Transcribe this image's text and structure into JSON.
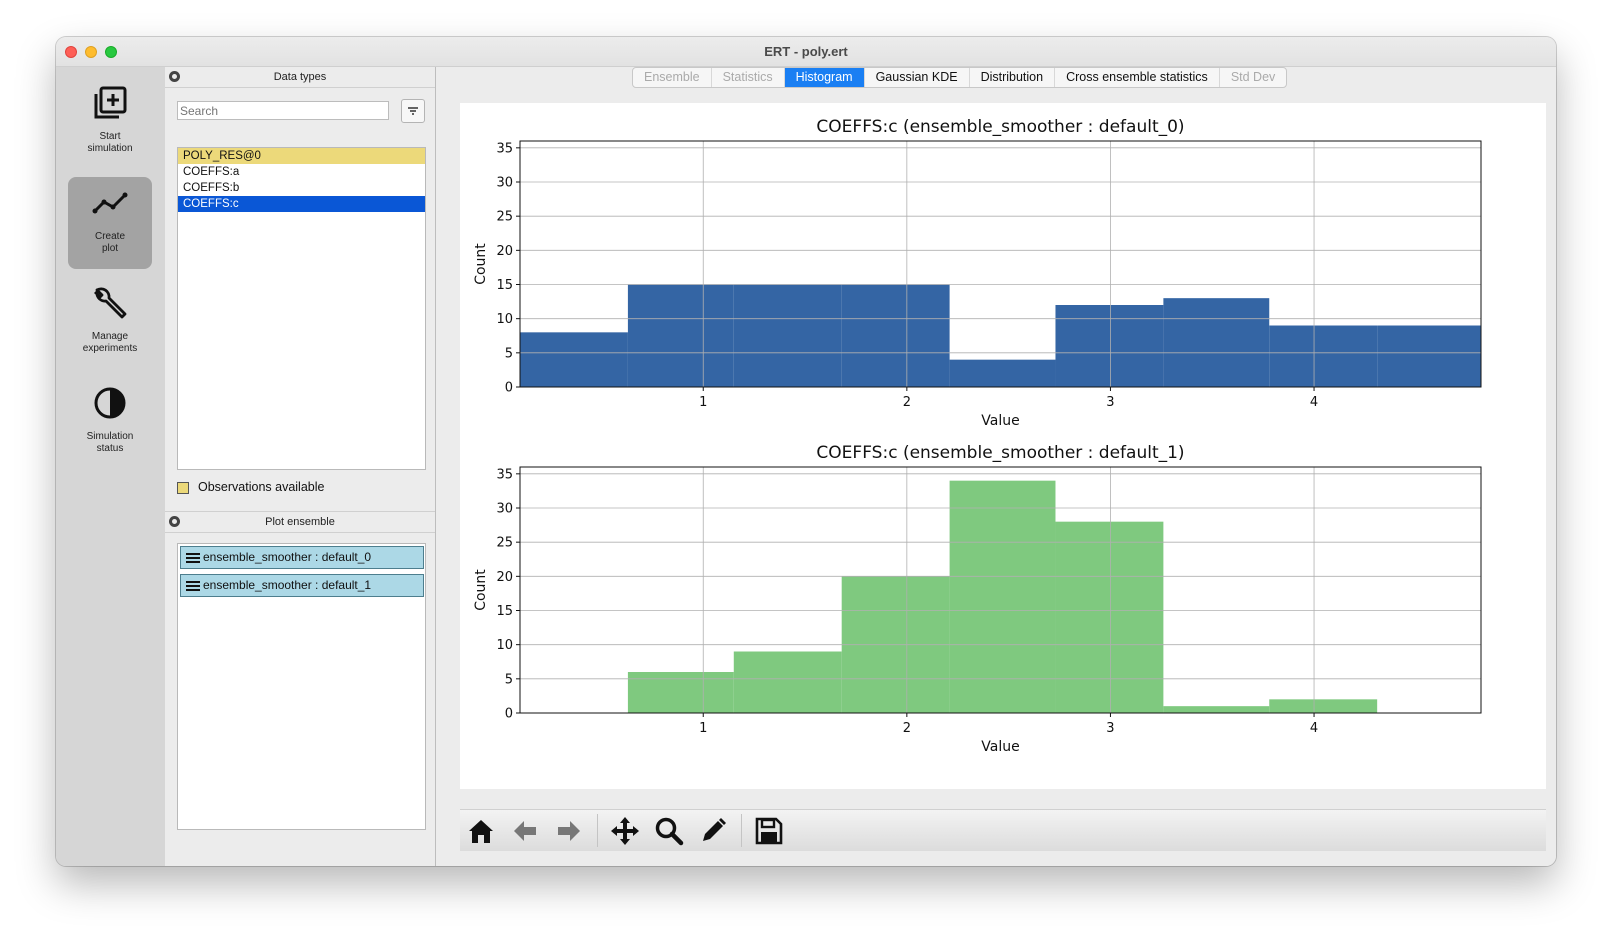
{
  "window": {
    "title": "ERT - poly.ert"
  },
  "sidebar": {
    "items": [
      {
        "label": "Start\nsimulation",
        "icon": "add-simulation-icon"
      },
      {
        "label": "Create\nplot",
        "icon": "line-chart-icon",
        "active": true
      },
      {
        "label": "Manage\nexperiments",
        "icon": "wrench-icon"
      },
      {
        "label": "Simulation\nstatus",
        "icon": "half-circle-status-icon"
      }
    ]
  },
  "data_types": {
    "title": "Data types",
    "search_placeholder": "Search",
    "items": [
      {
        "label": "POLY_RES@0",
        "state": "observations"
      },
      {
        "label": "COEFFS:a",
        "state": "normal"
      },
      {
        "label": "COEFFS:b",
        "state": "normal"
      },
      {
        "label": "COEFFS:c",
        "state": "selected"
      }
    ],
    "legend": "Observations available",
    "legend_color": "#ecd97a",
    "selected_color": "#0a57d6"
  },
  "plot_ensemble": {
    "title": "Plot ensemble",
    "items": [
      "ensemble_smoother : default_0",
      "ensemble_smoother : default_1"
    ],
    "item_color": "#acd8e6"
  },
  "tabs": [
    {
      "label": "Ensemble",
      "state": "disabled"
    },
    {
      "label": "Statistics",
      "state": "disabled"
    },
    {
      "label": "Histogram",
      "state": "active"
    },
    {
      "label": "Gaussian KDE",
      "state": "normal"
    },
    {
      "label": "Distribution",
      "state": "normal"
    },
    {
      "label": "Cross ensemble statistics",
      "state": "normal"
    },
    {
      "label": "Std Dev",
      "state": "disabled"
    }
  ],
  "toolbar": {
    "icons": [
      "home-icon",
      "back-arrow-icon",
      "forward-arrow-icon",
      "pan-icon",
      "zoom-icon",
      "edit-icon",
      "save-icon"
    ]
  },
  "chart_data": [
    {
      "type": "bar",
      "title": "COEFFS:c (ensemble_smoother : default_0)",
      "xlabel": "Value",
      "ylabel": "Count",
      "xlim": [
        0.1,
        4.82
      ],
      "ylim": [
        0,
        36
      ],
      "xticks": [
        1,
        2,
        3,
        4
      ],
      "yticks": [
        0,
        5,
        10,
        15,
        20,
        25,
        30,
        35
      ],
      "grid": true,
      "color": "#3465a4",
      "bins": [
        {
          "x0": 0.1,
          "x1": 0.63,
          "count": 8
        },
        {
          "x0": 0.63,
          "x1": 1.15,
          "count": 15
        },
        {
          "x0": 1.15,
          "x1": 1.68,
          "count": 15
        },
        {
          "x0": 1.68,
          "x1": 2.21,
          "count": 15
        },
        {
          "x0": 2.21,
          "x1": 2.73,
          "count": 4
        },
        {
          "x0": 2.73,
          "x1": 3.26,
          "count": 12
        },
        {
          "x0": 3.26,
          "x1": 3.78,
          "count": 13
        },
        {
          "x0": 3.78,
          "x1": 4.31,
          "count": 9
        },
        {
          "x0": 4.31,
          "x1": 4.82,
          "count": 9
        }
      ]
    },
    {
      "type": "bar",
      "title": "COEFFS:c (ensemble_smoother : default_1)",
      "xlabel": "Value",
      "ylabel": "Count",
      "xlim": [
        0.1,
        4.82
      ],
      "ylim": [
        0,
        36
      ],
      "xticks": [
        1,
        2,
        3,
        4
      ],
      "yticks": [
        0,
        5,
        10,
        15,
        20,
        25,
        30,
        35
      ],
      "grid": true,
      "color": "#7fc97f",
      "bins": [
        {
          "x0": 0.63,
          "x1": 1.15,
          "count": 6
        },
        {
          "x0": 1.15,
          "x1": 1.68,
          "count": 9
        },
        {
          "x0": 1.68,
          "x1": 2.21,
          "count": 20
        },
        {
          "x0": 2.21,
          "x1": 2.73,
          "count": 34
        },
        {
          "x0": 2.73,
          "x1": 3.26,
          "count": 28
        },
        {
          "x0": 3.26,
          "x1": 3.78,
          "count": 1
        },
        {
          "x0": 3.78,
          "x1": 4.31,
          "count": 2
        }
      ]
    }
  ]
}
